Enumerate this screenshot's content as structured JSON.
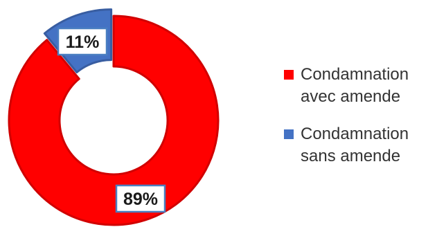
{
  "chart_data": {
    "type": "pie",
    "variant": "donut",
    "categories": [
      "Condamnation avec amende",
      "Condamnation sans amende"
    ],
    "values": [
      89,
      11
    ],
    "data_labels": [
      "89%",
      "11%"
    ],
    "colors": [
      "#ff0000",
      "#4472c4"
    ],
    "title": "",
    "legend_position": "right"
  },
  "legend": {
    "items": [
      {
        "line1": "Condamnation",
        "line2": "avec amende",
        "color": "#ff0000"
      },
      {
        "line1": "Condamnation",
        "line2": "sans amende",
        "color": "#4472c4"
      }
    ]
  }
}
